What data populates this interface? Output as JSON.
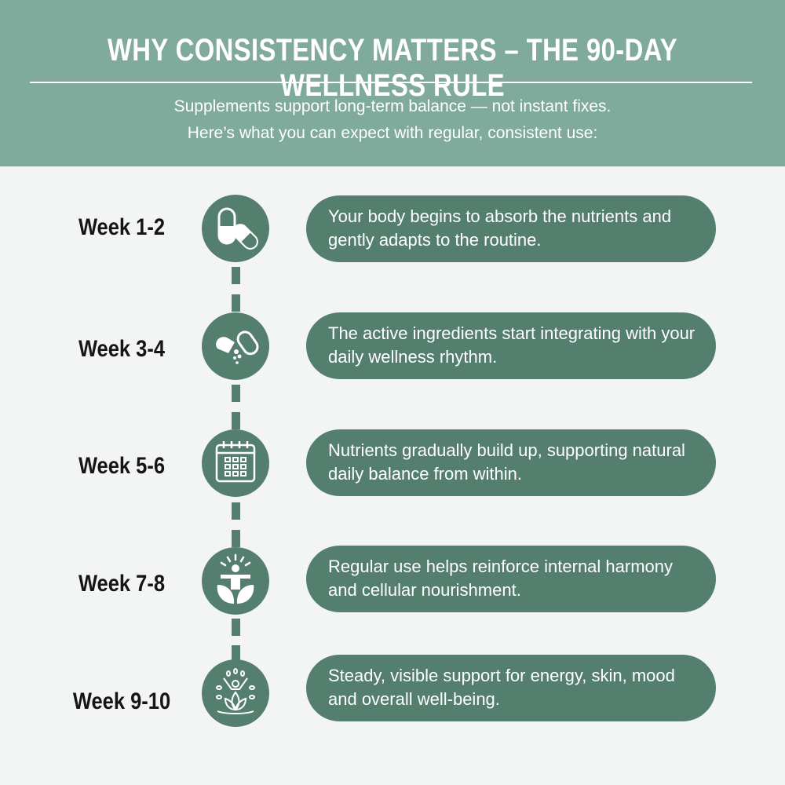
{
  "header": {
    "title": "WHY CONSISTENCY MATTERS – THE 90-DAY WELLNESS RULE",
    "subtitle_line1": "Supplements support long-term balance — not instant fixes.",
    "subtitle_line2": "Here’s what you can expect with regular, consistent use:"
  },
  "colors": {
    "header": "#80aa9b",
    "accent": "#547f6f",
    "background": "#f3f5f4"
  },
  "timeline": [
    {
      "week": "Week 1-2",
      "icon": "capsules-icon",
      "text": "Your body begins to absorb the nutrients and gently adapts to the routine."
    },
    {
      "week": "Week 3-4",
      "icon": "open-capsule-icon",
      "text": "The active ingredients start integrating with your daily wellness rhythm."
    },
    {
      "week": "Week 5-6",
      "icon": "calendar-icon",
      "text": "Nutrients gradually build up, supporting natural daily balance from within."
    },
    {
      "week": "Week 7-8",
      "icon": "person-leaves-icon",
      "text": "Regular use helps reinforce internal harmony and cellular nourishment."
    },
    {
      "week": "Week 9-10",
      "icon": "lotus-person-icon",
      "text": "Steady, visible support for energy, skin, mood and overall well-being."
    }
  ]
}
